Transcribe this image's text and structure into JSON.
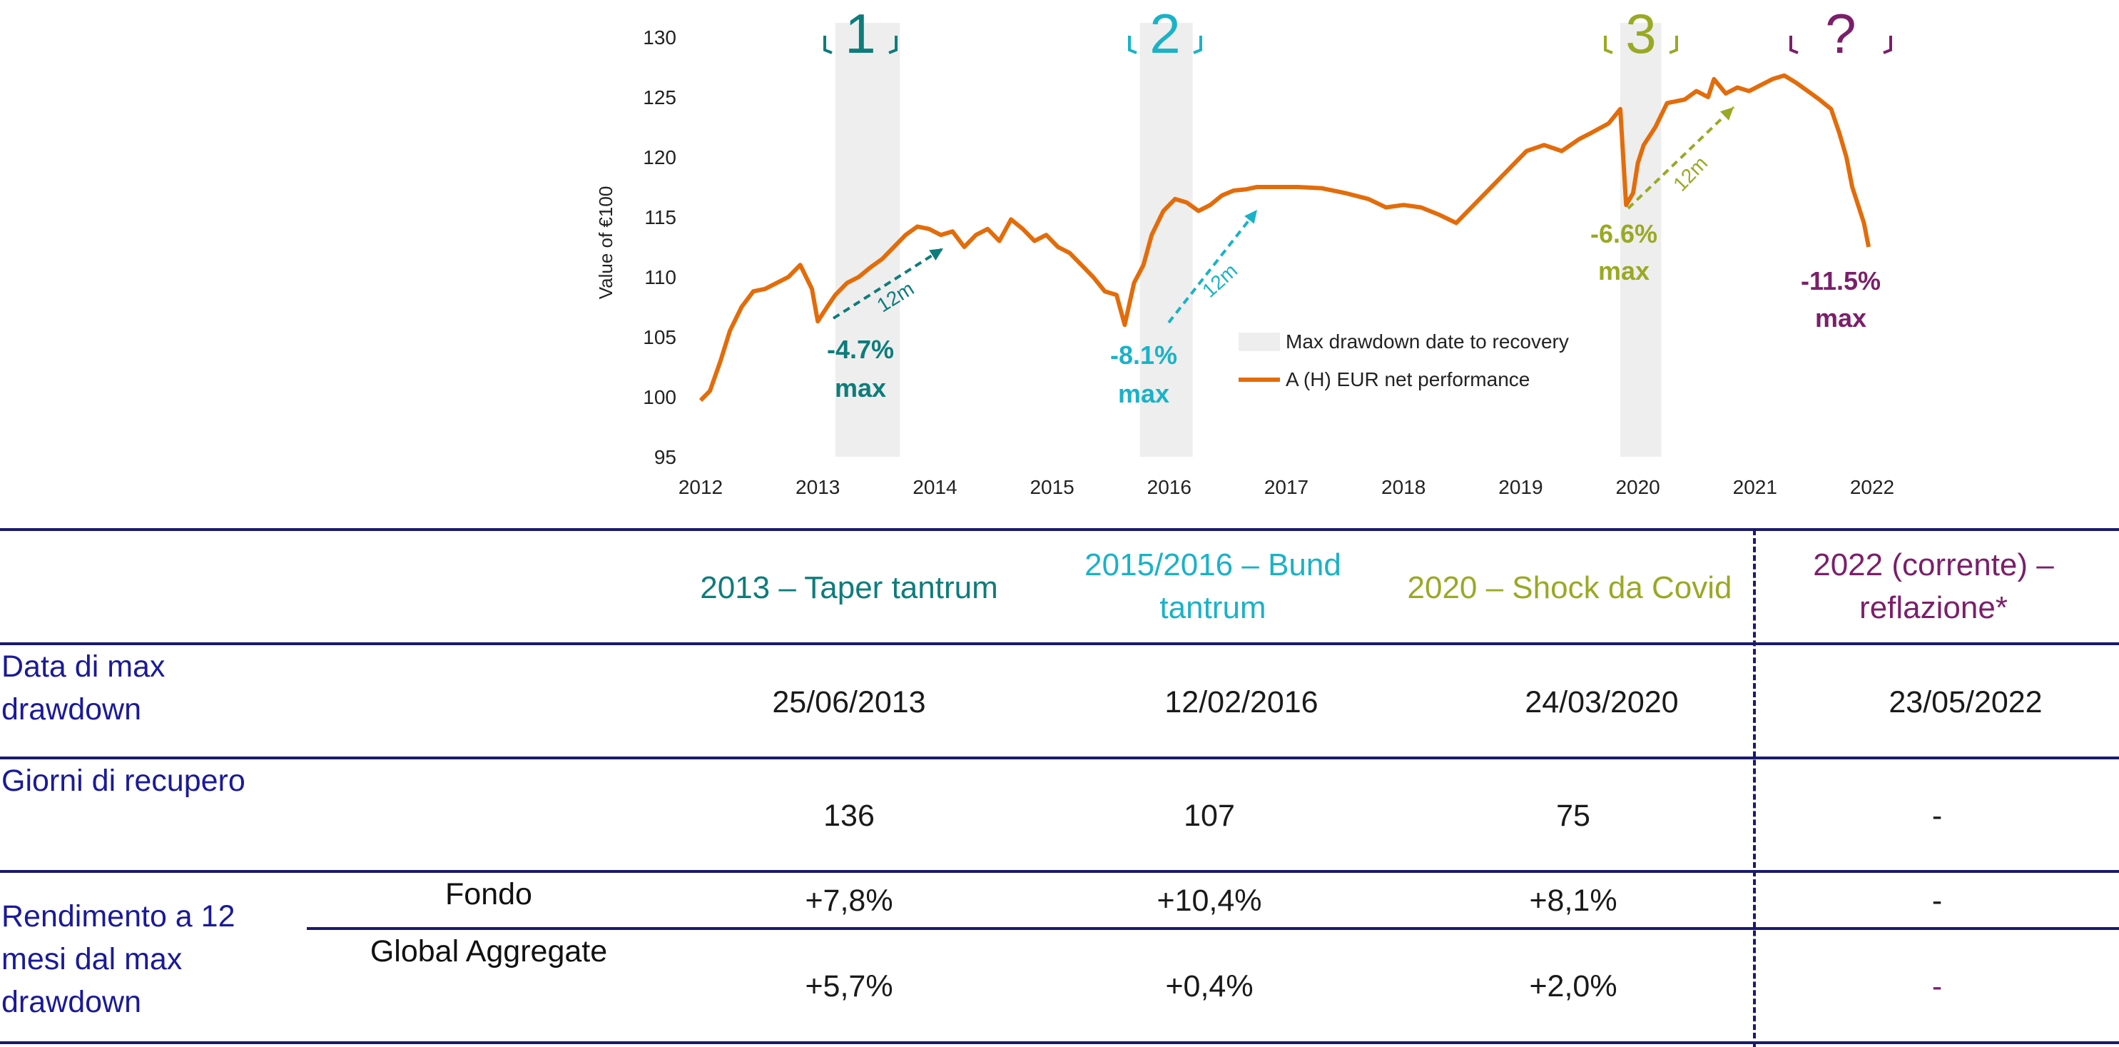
{
  "chart_data": {
    "type": "line",
    "ylabel": "Value of €100",
    "ylim": [
      95,
      130
    ],
    "yticks": [
      95,
      100,
      105,
      110,
      115,
      120,
      125,
      130
    ],
    "xlim": [
      2012,
      2022
    ],
    "xticks": [
      "2012",
      "2013",
      "2014",
      "2015",
      "2016",
      "2017",
      "2018",
      "2019",
      "2020",
      "2021",
      "2022"
    ],
    "series": [
      {
        "name": "A (H) EUR net performance",
        "color": "#e36c0a",
        "x": [
          2012.0,
          2012.08,
          2012.17,
          2012.25,
          2012.35,
          2012.45,
          2012.55,
          2012.65,
          2012.75,
          2012.85,
          2012.95,
          2013.0,
          2013.08,
          2013.15,
          2013.25,
          2013.35,
          2013.45,
          2013.55,
          2013.65,
          2013.75,
          2013.85,
          2013.95,
          2014.05,
          2014.15,
          2014.25,
          2014.35,
          2014.45,
          2014.55,
          2014.65,
          2014.75,
          2014.85,
          2014.95,
          2015.05,
          2015.15,
          2015.25,
          2015.35,
          2015.45,
          2015.55,
          2015.62,
          2015.7,
          2015.78,
          2015.85,
          2015.95,
          2016.05,
          2016.15,
          2016.25,
          2016.35,
          2016.45,
          2016.55,
          2016.65,
          2016.75,
          2016.9,
          2017.1,
          2017.3,
          2017.5,
          2017.7,
          2017.85,
          2018.0,
          2018.15,
          2018.3,
          2018.45,
          2018.6,
          2018.75,
          2018.85,
          2018.95,
          2019.05,
          2019.2,
          2019.35,
          2019.5,
          2019.6,
          2019.75,
          2019.85,
          2019.9,
          2019.96,
          2020.0,
          2020.05,
          2020.15,
          2020.25,
          2020.4,
          2020.5,
          2020.6,
          2020.65,
          2020.75,
          2020.85,
          2020.95,
          2021.05,
          2021.15,
          2021.25,
          2021.35,
          2021.45,
          2021.55,
          2021.65,
          2021.72,
          2021.78,
          2021.83,
          2021.88,
          2021.93,
          2021.97
        ],
        "values": [
          99.7,
          100.5,
          103.0,
          105.5,
          107.5,
          108.8,
          109.0,
          109.5,
          110.0,
          111.0,
          109.0,
          106.3,
          107.5,
          108.5,
          109.5,
          110.0,
          110.8,
          111.5,
          112.5,
          113.5,
          114.2,
          114.0,
          113.5,
          113.8,
          112.5,
          113.5,
          114.0,
          113.0,
          114.8,
          114.0,
          113.0,
          113.5,
          112.5,
          112.0,
          111.0,
          110.0,
          108.8,
          108.5,
          106.0,
          109.5,
          111.0,
          113.5,
          115.5,
          116.5,
          116.2,
          115.5,
          116.0,
          116.8,
          117.2,
          117.3,
          117.5,
          117.5,
          117.5,
          117.4,
          117.0,
          116.5,
          115.8,
          116.0,
          115.8,
          115.2,
          114.5,
          116.0,
          117.5,
          118.5,
          119.5,
          120.5,
          121.0,
          120.5,
          121.5,
          122.0,
          122.8,
          124.0,
          116.0,
          117.0,
          119.5,
          121.0,
          122.5,
          124.5,
          124.8,
          125.5,
          125.0,
          126.5,
          125.3,
          125.8,
          125.5,
          126.0,
          126.5,
          126.8,
          126.2,
          125.5,
          124.8,
          124.0,
          122.0,
          120.0,
          117.5,
          116.0,
          114.5,
          112.5
        ]
      }
    ],
    "shaded_periods": {
      "label": "Max drawdown date to recovery",
      "ranges": [
        [
          2013.15,
          2013.7
        ],
        [
          2015.75,
          2016.2
        ],
        [
          2019.85,
          2020.2
        ]
      ]
    },
    "episodes": [
      {
        "marker": "1",
        "drawdown": "-4.7%",
        "max_label": "max",
        "arrow_label": "12m",
        "color": "#0e7c7b"
      },
      {
        "marker": "2",
        "drawdown": "-8.1%",
        "max_label": "max",
        "arrow_label": "12m",
        "color": "#1ab2c7"
      },
      {
        "marker": "3",
        "drawdown": "-6.6%",
        "max_label": "max",
        "arrow_label": "12m",
        "color": "#99a924"
      },
      {
        "marker": "?",
        "drawdown": "-11.5%",
        "max_label": "max",
        "arrow_label": "",
        "color": "#7b1f6a"
      }
    ]
  },
  "table": {
    "headers": [
      {
        "text": "2013 – Taper tantrum",
        "color": "#0e7c7b"
      },
      {
        "text": "2015/2016 – Bund tantrum",
        "color": "#1ab2c7"
      },
      {
        "text": "2020 – Shock da Covid",
        "color": "#99a924"
      },
      {
        "text": "2022 (corrente) – reflazione*",
        "color": "#7b1f6a"
      }
    ],
    "rows": [
      {
        "label": "Data di max drawdown",
        "values": [
          "25/06/2013",
          "12/02/2016",
          "24/03/2020",
          "23/05/2022"
        ]
      },
      {
        "label": "Giorni di recupero",
        "values": [
          "136",
          "107",
          "75",
          "-"
        ]
      }
    ],
    "return_row": {
      "label": "Rendimento a 12 mesi dal max drawdown",
      "sub_rows": [
        {
          "label": "Fondo",
          "values": [
            "+7,8%",
            "+10,4%",
            "+8,1%",
            "-"
          ]
        },
        {
          "label": "Global Aggregate",
          "values": [
            "+5,7%",
            "+0,4%",
            "+2,0%",
            "-"
          ]
        }
      ]
    }
  }
}
